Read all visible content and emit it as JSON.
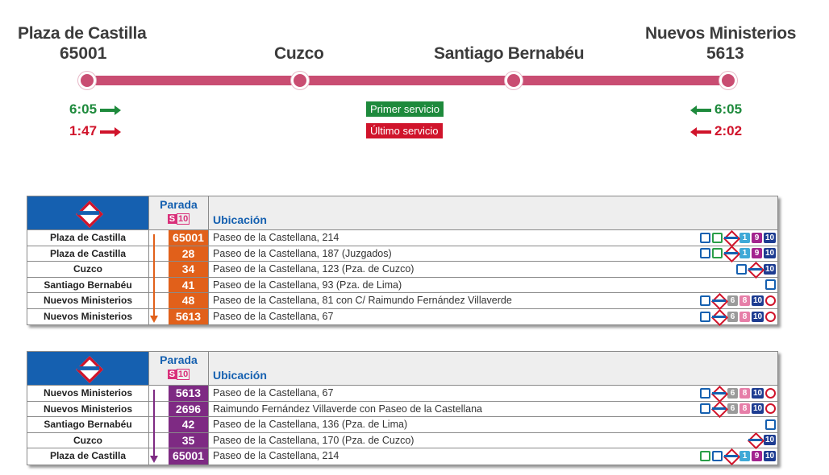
{
  "header": {
    "terminal_left": {
      "name": "Plaza de Castilla",
      "code": "65001"
    },
    "stop_2": {
      "name": "Cuzco"
    },
    "stop_3": {
      "name": "Santiago Bernabéu"
    },
    "terminal_right": {
      "name": "Nuevos Ministerios",
      "code": "5613"
    },
    "left_first": "6:05",
    "left_last": "1:47",
    "right_first": "6:05",
    "right_last": "2:02",
    "first_label": "Primer servicio",
    "last_label": "Último servicio"
  },
  "colors": {
    "line": "#c94d72",
    "green": "#1e8a3c",
    "red": "#d0142b",
    "dir1": "#e1601a",
    "dir2": "#7e2a83",
    "header_blue": "#1560b0"
  },
  "table_header": {
    "logo": "Metro",
    "parada": "Parada",
    "s10_s": "S",
    "s10_n": "10",
    "ubicacion": "Ubicación"
  },
  "table1": {
    "rows": [
      {
        "name": "Plaza de Castilla",
        "code": "65001",
        "addr": "Paseo de la Castellana, 214",
        "icons": [
          "bus",
          "bus2",
          "metro",
          "l1",
          "l9",
          "l10"
        ]
      },
      {
        "name": "Plaza de Castilla",
        "code": "28",
        "addr": "Paseo de la Castellana, 187 (Juzgados)",
        "icons": [
          "bus",
          "bus2",
          "metro",
          "l1",
          "l9",
          "l10"
        ]
      },
      {
        "name": "Cuzco",
        "code": "34",
        "addr": "Paseo de la Castellana, 123 (Pza. de Cuzco)",
        "icons": [
          "bus",
          "metro",
          "l10"
        ]
      },
      {
        "name": "Santiago Bernabéu",
        "code": "41",
        "addr": "Paseo de la Castellana, 93 (Pza. de Lima)",
        "icons": [
          "bus"
        ]
      },
      {
        "name": "Nuevos Ministerios",
        "code": "48",
        "addr": "Paseo de la Castellana, 81 con C/ Raimundo Fernández Villaverde",
        "icons": [
          "bus",
          "metro",
          "l6",
          "l8",
          "l10",
          "cer"
        ]
      },
      {
        "name": "Nuevos Ministerios",
        "code": "5613",
        "addr": "Paseo de la Castellana, 67",
        "icons": [
          "bus",
          "metro",
          "l6",
          "l8",
          "l10",
          "cer"
        ]
      }
    ]
  },
  "table2": {
    "rows": [
      {
        "name": "Nuevos Ministerios",
        "code": "5613",
        "addr": "Paseo de la Castellana, 67",
        "icons": [
          "bus",
          "metro",
          "l6",
          "l8",
          "l10",
          "cer"
        ]
      },
      {
        "name": "Nuevos Ministerios",
        "code": "2696",
        "addr": "Raimundo Fernández Villaverde con Paseo de la Castellana",
        "icons": [
          "bus",
          "metro",
          "l6",
          "l8",
          "l10",
          "cer"
        ]
      },
      {
        "name": "Santiago Bernabéu",
        "code": "42",
        "addr": "Paseo de la Castellana, 136 (Pza. de Lima)",
        "icons": [
          "bus"
        ]
      },
      {
        "name": "Cuzco",
        "code": "35",
        "addr": "Paseo de la Castellana, 170 (Pza. de Cuzco)",
        "icons": [
          "metro",
          "l10"
        ]
      },
      {
        "name": "Plaza de Castilla",
        "code": "65001",
        "addr": "Paseo de la Castellana, 214",
        "icons": [
          "bus2",
          "bus",
          "metro",
          "l1",
          "l9",
          "l10"
        ]
      }
    ]
  },
  "icon_labels": {
    "l1": "1",
    "l9": "9",
    "l10": "10",
    "l6": "6",
    "l8": "8"
  }
}
